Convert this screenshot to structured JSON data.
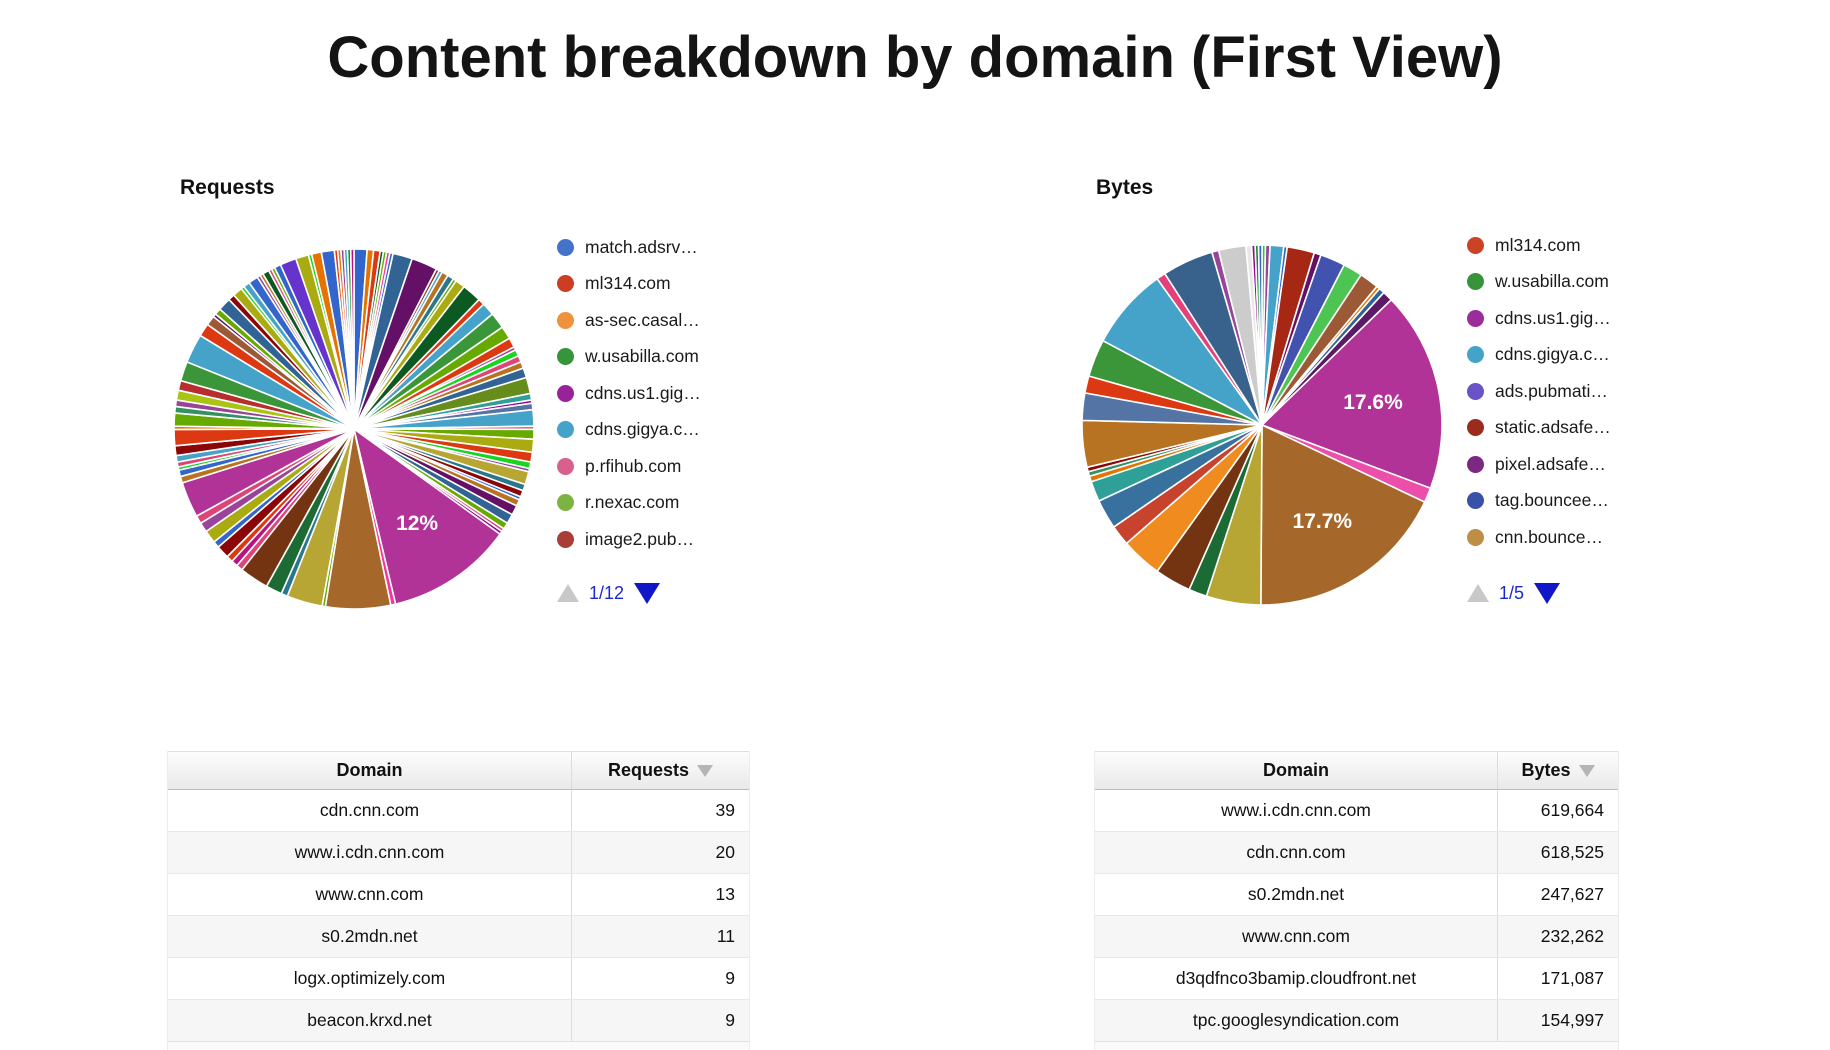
{
  "page_title": "Content breakdown by domain (First View)",
  "chart_data": [
    {
      "type": "pie",
      "title": "Requests",
      "legend_position": "right",
      "legend": [
        {
          "label": "match.adsrv…",
          "color": "#4374C9"
        },
        {
          "label": "ml314.com",
          "color": "#CC3E24"
        },
        {
          "label": "as-sec.casal…",
          "color": "#F0913D"
        },
        {
          "label": "w.usabilla.com",
          "color": "#36953B"
        },
        {
          "label": "cdns.us1.gig…",
          "color": "#99229B"
        },
        {
          "label": "cdns.gigya.c…",
          "color": "#45A2C9"
        },
        {
          "label": "p.rfihub.com",
          "color": "#D8608C"
        },
        {
          "label": "r.nexac.com",
          "color": "#7CB342"
        },
        {
          "label": "image2.pub…",
          "color": "#A93E38"
        }
      ],
      "pagination": {
        "page": "1/12"
      },
      "percent_labels": [
        "12%"
      ],
      "slices": [
        [
          "#3366CC",
          4
        ],
        [
          "#E67300",
          2
        ],
        [
          "#DC3912",
          2
        ],
        [
          "#0C5922",
          1
        ],
        [
          "#66AA00",
          1
        ],
        [
          "#F4359E",
          1
        ],
        [
          "#3366CC",
          1
        ],
        [
          "#316395",
          6
        ],
        [
          "#651067",
          8
        ],
        [
          "#94342B",
          1
        ],
        [
          "#45A2C9",
          1
        ],
        [
          "#B77322",
          2
        ],
        [
          "#2A778D",
          2
        ],
        [
          "#66AA00",
          1
        ],
        [
          "#AAAA11",
          3
        ],
        [
          "#0C5922",
          6
        ],
        [
          "#DC3912",
          2
        ],
        [
          "#45A2C9",
          4
        ],
        [
          "#3B9639",
          5
        ],
        [
          "#66AA00",
          4
        ],
        [
          "#DC3912",
          3
        ],
        [
          "#994499",
          1
        ],
        [
          "#16D620",
          2
        ],
        [
          "#DD4477",
          2
        ],
        [
          "#B77322",
          2
        ],
        [
          "#316395",
          3
        ],
        [
          "#668D1C",
          5
        ],
        [
          "#2FA098",
          2
        ],
        [
          "#990099",
          1
        ],
        [
          "#5574A6",
          2
        ],
        [
          "#45A2C9",
          5
        ],
        [
          "#D85F87",
          1
        ],
        [
          "#66AA00",
          3
        ],
        [
          "#AAAA11",
          4
        ],
        [
          "#DC3912",
          3
        ],
        [
          "#16D620",
          2
        ],
        [
          "#994499",
          1
        ],
        [
          "#B8A634",
          4
        ],
        [
          "#2A778D",
          2
        ],
        [
          "#8B0707",
          2
        ],
        [
          "#3366CC",
          1
        ],
        [
          "#B77322",
          2
        ],
        [
          "#651067",
          3
        ],
        [
          "#316395",
          3
        ],
        [
          "#66AA00",
          2
        ],
        [
          "#DD4477",
          1
        ],
        [
          "#990099",
          1
        ],
        [
          "#B13397",
          39,
          "12%"
        ],
        [
          "#F4359E",
          1.5
        ],
        [
          "#A5682A",
          20
        ],
        [
          "#66AA00",
          1
        ],
        [
          "#B8A634",
          11
        ],
        [
          "#2A778D",
          2
        ],
        [
          "#1D6B34",
          5
        ],
        [
          "#743411",
          9
        ],
        [
          "#DD4477",
          2
        ],
        [
          "#B91383",
          2
        ],
        [
          "#DC3912",
          2
        ],
        [
          "#8B0707",
          4
        ],
        [
          "#3366CC",
          2
        ],
        [
          "#AAAA11",
          4
        ],
        [
          "#994499",
          3
        ],
        [
          "#DD4477",
          2.5
        ],
        [
          "#B13397",
          11
        ],
        [
          "#B77322",
          2
        ],
        [
          "#3366CC",
          2
        ],
        [
          "#16D620",
          1
        ],
        [
          "#DD4477",
          1.5
        ],
        [
          "#45A2C9",
          2
        ],
        [
          "#8B0707",
          3
        ],
        [
          "#DC3912",
          5
        ],
        [
          "#E67300",
          1
        ],
        [
          "#66AA00",
          4
        ],
        [
          "#329262",
          2
        ],
        [
          "#994499",
          2
        ],
        [
          "#A9C413",
          3
        ],
        [
          "#B82E2E",
          3
        ],
        [
          "#3B9639",
          6
        ],
        [
          "#45A2C9",
          9
        ],
        [
          "#DC3912",
          4
        ],
        [
          "#9C5935",
          3
        ],
        [
          "#651067",
          1
        ],
        [
          "#66AA00",
          2
        ],
        [
          "#316395",
          4
        ],
        [
          "#8B0707",
          2
        ],
        [
          "#AAAA11",
          3
        ],
        [
          "#16D620",
          1
        ],
        [
          "#45A2C9",
          2
        ],
        [
          "#3366CC",
          3
        ],
        [
          "#994499",
          1
        ],
        [
          "#B77322",
          1
        ],
        [
          "#0C5922",
          2
        ],
        [
          "#DD4477",
          1
        ],
        [
          "#66AA00",
          1
        ],
        [
          "#3366CC",
          2
        ],
        [
          "#6633CC",
          5
        ],
        [
          "#AAAA11",
          4
        ],
        [
          "#16D620",
          1
        ],
        [
          "#E67300",
          3
        ],
        [
          "#3366CC",
          4
        ],
        [
          "#DC3912",
          1
        ],
        [
          "#E67300",
          1
        ],
        [
          "#994499",
          1
        ],
        [
          "#45A2C9",
          1
        ],
        [
          "#109618",
          1
        ],
        [
          "#B91383",
          1
        ]
      ]
    },
    {
      "type": "pie",
      "title": "Bytes",
      "legend_position": "right",
      "legend": [
        {
          "label": "ml314.com",
          "color": "#CC4227"
        },
        {
          "label": "w.usabilla.com",
          "color": "#36953B"
        },
        {
          "label": "cdns.us1.gig…",
          "color": "#9B2D9B"
        },
        {
          "label": "cdns.gigya.c…",
          "color": "#45A2C9"
        },
        {
          "label": "ads.pubmati…",
          "color": "#6A52C7"
        },
        {
          "label": "static.adsafe…",
          "color": "#9A2B1F"
        },
        {
          "label": "pixel.adsafe…",
          "color": "#7B2982"
        },
        {
          "label": "tag.bouncee…",
          "color": "#3A51A8"
        },
        {
          "label": "cnn.bounce…",
          "color": "#BE8D46"
        }
      ],
      "pagination": {
        "page": "1/5"
      },
      "percent_labels": [
        "17.6%",
        "17.7%"
      ],
      "slices": [
        [
          "#16D620",
          0.3
        ],
        [
          "#994499",
          0.4
        ],
        [
          "#45A2C9",
          1.2
        ],
        [
          "#3366CC",
          0.3
        ],
        [
          "#A52714",
          2.4
        ],
        [
          "#651067",
          0.6
        ],
        [
          "#4253AF",
          2.2
        ],
        [
          "#4CC552",
          1.7
        ],
        [
          "#9C5935",
          1.7
        ],
        [
          "#E67300",
          0.3
        ],
        [
          "#316395",
          0.5
        ],
        [
          "#5C1A66",
          0.9
        ],
        [
          "#B13397",
          17.6,
          "17.6%"
        ],
        [
          "#EB4FA9",
          1.3
        ],
        [
          "#A5682A",
          17.7,
          "17.7%"
        ],
        [
          "#B8A634",
          4.8
        ],
        [
          "#1D6B34",
          1.6
        ],
        [
          "#743411",
          3.2
        ],
        [
          "#F08C1F",
          3.6
        ],
        [
          "#C7432E",
          1.8
        ],
        [
          "#38709E",
          2.6
        ],
        [
          "#2FA098",
          1.8
        ],
        [
          "#E67300",
          0.5
        ],
        [
          "#329262",
          0.4
        ],
        [
          "#8B0707",
          0.4
        ],
        [
          "#B77322",
          4.1
        ],
        [
          "#5574A6",
          2.4
        ],
        [
          "#DC3912",
          1.5
        ],
        [
          "#3B9639",
          3.3
        ],
        [
          "#45A2C9",
          7.2
        ],
        [
          "#E2417B",
          0.8
        ],
        [
          "#38618C",
          4.5
        ],
        [
          "#994499",
          0.6
        ],
        [
          "#CCCCCC",
          2.4
        ],
        [
          "#E8E8E8",
          0.5
        ],
        [
          "#990099",
          0.3
        ],
        [
          "#109618",
          0.3
        ],
        [
          "#3366CC",
          0.3
        ]
      ]
    },
    {
      "type": "table",
      "columns": [
        "Domain",
        "Requests"
      ],
      "sort_column": "Requests",
      "rows": [
        [
          "cdn.cnn.com",
          "39"
        ],
        [
          "www.i.cdn.cnn.com",
          "20"
        ],
        [
          "www.cnn.com",
          "13"
        ],
        [
          "s0.2mdn.net",
          "11"
        ],
        [
          "logx.optimizely.com",
          "9"
        ],
        [
          "beacon.krxd.net",
          "9"
        ]
      ]
    },
    {
      "type": "table",
      "columns": [
        "Domain",
        "Bytes"
      ],
      "sort_column": "Bytes",
      "rows": [
        [
          "www.i.cdn.cnn.com",
          "619,664"
        ],
        [
          "cdn.cnn.com",
          "618,525"
        ],
        [
          "s0.2mdn.net",
          "247,627"
        ],
        [
          "www.cnn.com",
          "232,262"
        ],
        [
          "d3qdfnco3bamip.cloudfront.net",
          "171,087"
        ],
        [
          "tpc.googlesyndication.com",
          "154,997"
        ]
      ]
    }
  ],
  "colors": {
    "pager_text": "#1B2ACB",
    "pager_down_arrow": "#1117C9",
    "pager_up_arrow": "#C8C8C8",
    "big_magenta_slice": "#B13397",
    "big_brown_slice": "#A5682A"
  }
}
